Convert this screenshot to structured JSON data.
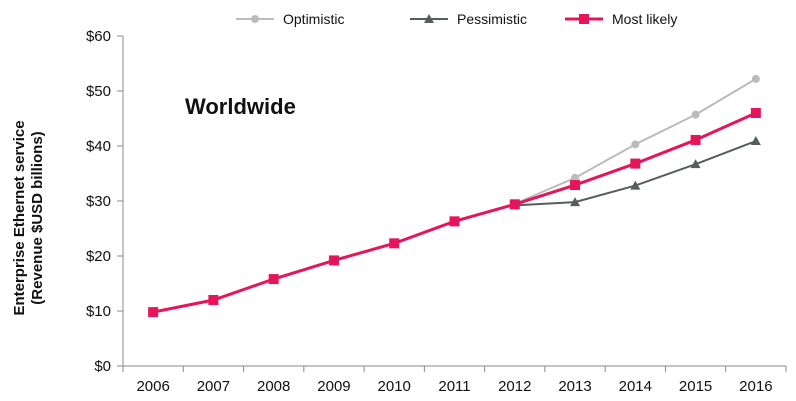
{
  "chart_data": {
    "type": "line",
    "title": "",
    "annotation": "Worldwide",
    "xlabel": "",
    "ylabel_lines": [
      "Enterprise Ethernet service",
      "(Revenue $USD billions)"
    ],
    "y_tick_labels": [
      "$0",
      "$10",
      "$20",
      "$30",
      "$40",
      "$50",
      "$60"
    ],
    "ylim": [
      0,
      60
    ],
    "x": [
      "2006",
      "2007",
      "2008",
      "2009",
      "2010",
      "2011",
      "2012",
      "2013",
      "2014",
      "2015",
      "2016"
    ],
    "legend_position": "top",
    "grid": false,
    "series": [
      {
        "name": "Optimistic",
        "color": "#bbbbbb",
        "marker": "circle",
        "x": [
          "2012",
          "2013",
          "2014",
          "2015",
          "2016"
        ],
        "values": [
          29.5,
          34.2,
          40.3,
          45.7,
          52.2
        ]
      },
      {
        "name": "Pessimistic",
        "color": "#555e5a",
        "marker": "triangle",
        "x": [
          "2012",
          "2013",
          "2014",
          "2015",
          "2016"
        ],
        "values": [
          29.2,
          29.8,
          32.8,
          36.7,
          40.9
        ]
      },
      {
        "name": "Most likely",
        "color": "#e4155b",
        "marker": "square",
        "x": [
          "2006",
          "2007",
          "2008",
          "2009",
          "2010",
          "2011",
          "2012",
          "2013",
          "2014",
          "2015",
          "2016"
        ],
        "values": [
          9.8,
          12.0,
          15.8,
          19.2,
          22.3,
          26.3,
          29.4,
          32.9,
          36.8,
          41.1,
          46.0
        ]
      }
    ]
  }
}
